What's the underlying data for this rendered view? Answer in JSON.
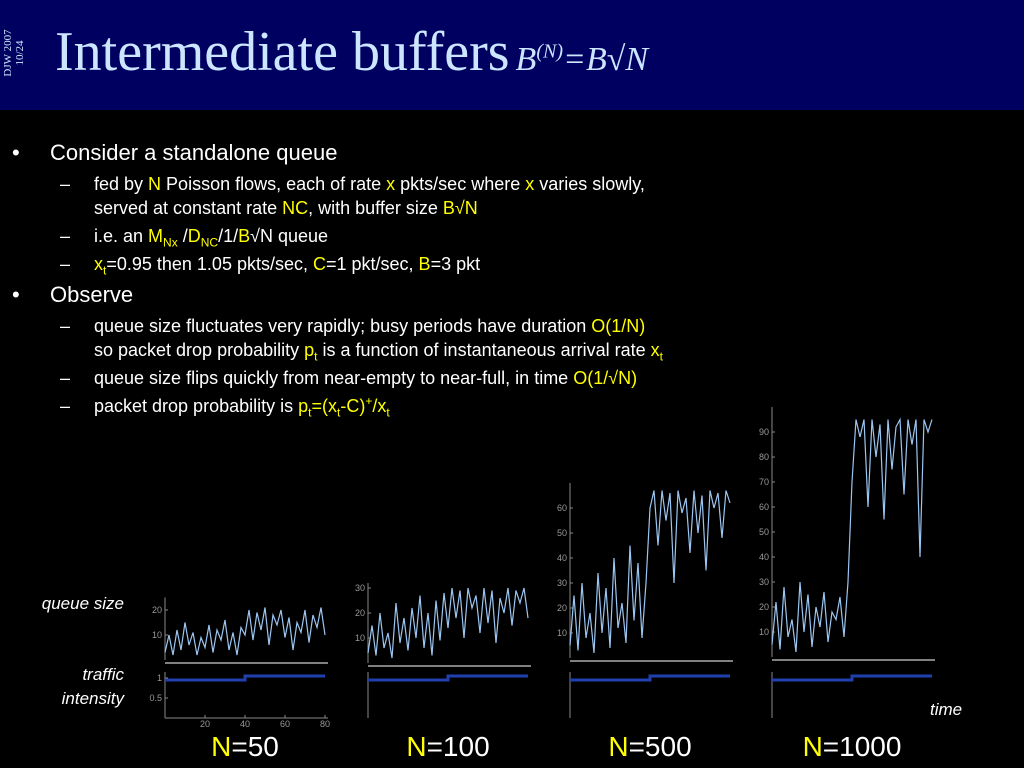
{
  "header": {
    "side": [
      "DJW 2007",
      "10/24"
    ],
    "title": "Intermediate buffers",
    "formula": [
      {
        "text": "B"
      },
      {
        "text": "(N)",
        "pos": "sup"
      },
      {
        "text": "=B√N"
      }
    ]
  },
  "bullets": [
    {
      "text": "Consider a standalone queue",
      "items": [
        {
          "lines": [
            [
              {
                "text": "fed by "
              },
              {
                "text": "N",
                "color": "#ffff00"
              },
              {
                "text": " Poisson flows, each of rate "
              },
              {
                "text": "x",
                "color": "#ffff00"
              },
              {
                "text": " pkts/sec where "
              },
              {
                "text": "x",
                "color": "#ffff00"
              },
              {
                "text": " varies slowly,"
              }
            ],
            [
              {
                "text": "served at constant rate "
              },
              {
                "text": "NC",
                "color": "#ffff00"
              },
              {
                "text": ", with buffer size "
              },
              {
                "text": "B√N",
                "color": "#ffff00"
              }
            ]
          ]
        },
        {
          "lines": [
            [
              {
                "text": "i.e. an "
              },
              {
                "text": "M",
                "color": "#ffff00"
              },
              {
                "text": "Nx",
                "color": "#ffff00",
                "pos": "sub"
              },
              {
                "text": " /"
              },
              {
                "text": "D",
                "color": "#ffff00"
              },
              {
                "text": "NC",
                "color": "#ffff00",
                "pos": "sub"
              },
              {
                "text": "/1/"
              },
              {
                "text": "B",
                "color": "#ffff00"
              },
              {
                "text": "√N queue"
              }
            ]
          ]
        },
        {
          "lines": [
            [
              {
                "text": "x",
                "color": "#ffff00"
              },
              {
                "text": "t",
                "color": "#ffff00",
                "pos": "sub"
              },
              {
                "text": "=0.95 then 1.05 pkts/sec, "
              },
              {
                "text": "C",
                "color": "#ffff00"
              },
              {
                "text": "=1 pkt/sec, "
              },
              {
                "text": "B",
                "color": "#ffff00"
              },
              {
                "text": "=3 pkt"
              }
            ]
          ]
        }
      ]
    },
    {
      "text": "Observe",
      "items": [
        {
          "lines": [
            [
              {
                "text": "queue size fluctuates very rapidly; busy periods have duration "
              },
              {
                "text": "O(1/N)",
                "color": "#ffff00"
              }
            ],
            [
              {
                "text": "so packet drop probability "
              },
              {
                "text": "p",
                "color": "#ffff00"
              },
              {
                "text": "t",
                "color": "#ffff00",
                "pos": "sub"
              },
              {
                "text": " is a function of instantaneous arrival rate "
              },
              {
                "text": "x",
                "color": "#ffff00"
              },
              {
                "text": "t",
                "color": "#ffff00",
                "pos": "sub"
              }
            ]
          ]
        },
        {
          "lines": [
            [
              {
                "text": "queue size flips quickly from near-empty to near-full, in time "
              },
              {
                "text": "O(1/√N)",
                "color": "#ffff00"
              }
            ]
          ]
        },
        {
          "lines": [
            [
              {
                "text": "packet drop probability is "
              },
              {
                "text": "p",
                "color": "#ffff00"
              },
              {
                "text": "t",
                "color": "#ffff00",
                "pos": "sub"
              },
              {
                "text": "=(x",
                "color": "#ffff00"
              },
              {
                "text": "t",
                "color": "#ffff00",
                "pos": "sub"
              },
              {
                "text": "-C)",
                "color": "#ffff00"
              },
              {
                "text": "+",
                "color": "#ffff00",
                "pos": "sup"
              },
              {
                "text": "/x",
                "color": "#ffff00"
              },
              {
                "text": "t",
                "color": "#ffff00",
                "pos": "sub"
              }
            ]
          ]
        }
      ]
    }
  ],
  "axis_labels": {
    "queue": "queue size",
    "intensity": "traffic intensity",
    "time": "time"
  },
  "chart_data": [
    {
      "type": "line",
      "label": [
        {
          "text": "N",
          "color": "#ffff00"
        },
        {
          "text": "=50"
        }
      ],
      "xlim": [
        0,
        80
      ],
      "xticks": [
        20,
        40,
        60,
        80
      ],
      "ylim": [
        0,
        25
      ],
      "yticks": [
        10,
        20
      ],
      "y2lim": [
        0,
        1.15
      ],
      "y2ticks": [
        0.5,
        1
      ],
      "queue": {
        "color": "#9cc6f2",
        "x": [
          0,
          2,
          4,
          6,
          8,
          10,
          12,
          14,
          16,
          18,
          20,
          22,
          24,
          26,
          28,
          30,
          32,
          34,
          36,
          38,
          40,
          42,
          44,
          46,
          48,
          50,
          52,
          54,
          56,
          58,
          60,
          62,
          64,
          66,
          68,
          70,
          72,
          74,
          76,
          78,
          80
        ],
        "values": [
          3,
          10,
          2,
          12,
          4,
          15,
          6,
          11,
          2,
          9,
          5,
          14,
          3,
          12,
          8,
          16,
          4,
          11,
          2,
          13,
          10,
          20,
          8,
          19,
          12,
          21,
          6,
          18,
          14,
          20,
          9,
          17,
          4,
          15,
          11,
          20,
          7,
          18,
          13,
          21,
          10
        ]
      },
      "intensity": {
        "color": "#2040b0",
        "axis": "y2",
        "x": [
          0,
          40,
          40,
          80
        ],
        "values": [
          0.95,
          0.95,
          1.05,
          1.05
        ]
      }
    },
    {
      "type": "line",
      "label": [
        {
          "text": "N",
          "color": "#ffff00"
        },
        {
          "text": "=100"
        }
      ],
      "xlim": [
        0,
        80
      ],
      "ylim": [
        0,
        32
      ],
      "yticks": [
        10,
        20,
        30
      ],
      "y2lim": [
        0,
        1.15
      ],
      "queue": {
        "color": "#9cc6f2",
        "x": [
          0,
          2,
          4,
          6,
          8,
          10,
          12,
          14,
          16,
          18,
          20,
          22,
          24,
          26,
          28,
          30,
          32,
          34,
          36,
          38,
          40,
          42,
          44,
          46,
          48,
          50,
          52,
          54,
          56,
          58,
          60,
          62,
          64,
          66,
          68,
          70,
          72,
          74,
          76,
          78,
          80
        ],
        "values": [
          4,
          15,
          3,
          20,
          6,
          12,
          2,
          24,
          8,
          18,
          5,
          22,
          10,
          27,
          6,
          20,
          3,
          25,
          9,
          28,
          14,
          30,
          18,
          29,
          10,
          30,
          22,
          27,
          12,
          30,
          16,
          29,
          8,
          26,
          20,
          30,
          15,
          29,
          24,
          30,
          18
        ]
      },
      "intensity": {
        "color": "#2040b0",
        "axis": "y2",
        "x": [
          0,
          40,
          40,
          80
        ],
        "values": [
          0.95,
          0.95,
          1.05,
          1.05
        ]
      }
    },
    {
      "type": "line",
      "label": [
        {
          "text": "N",
          "color": "#ffff00"
        },
        {
          "text": "=500"
        }
      ],
      "xlim": [
        0,
        80
      ],
      "ylim": [
        0,
        70
      ],
      "yticks": [
        10,
        20,
        30,
        40,
        50,
        60
      ],
      "y2lim": [
        0,
        1.15
      ],
      "queue": {
        "color": "#9cc6f2",
        "x": [
          0,
          2,
          4,
          6,
          8,
          10,
          12,
          14,
          16,
          18,
          20,
          22,
          24,
          26,
          28,
          30,
          32,
          34,
          36,
          38,
          40,
          42,
          44,
          46,
          48,
          50,
          52,
          54,
          56,
          58,
          60,
          62,
          64,
          66,
          68,
          70,
          72,
          74,
          76,
          78,
          80
        ],
        "values": [
          5,
          25,
          3,
          30,
          8,
          18,
          2,
          34,
          10,
          28,
          4,
          40,
          12,
          22,
          6,
          45,
          15,
          38,
          8,
          30,
          60,
          67,
          45,
          67,
          55,
          66,
          30,
          67,
          58,
          64,
          42,
          67,
          50,
          65,
          35,
          67,
          60,
          66,
          48,
          67,
          62
        ]
      },
      "intensity": {
        "color": "#2040b0",
        "axis": "y2",
        "x": [
          0,
          40,
          40,
          80
        ],
        "values": [
          0.95,
          0.95,
          1.05,
          1.05
        ]
      }
    },
    {
      "type": "line",
      "label": [
        {
          "text": "N",
          "color": "#ffff00"
        },
        {
          "text": "=1000"
        }
      ],
      "xlim": [
        0,
        80
      ],
      "ylim": [
        0,
        100
      ],
      "yticks": [
        10,
        20,
        30,
        40,
        50,
        60,
        70,
        80,
        90
      ],
      "y2lim": [
        0,
        1.15
      ],
      "queue": {
        "color": "#9cc6f2",
        "x": [
          0,
          2,
          4,
          6,
          8,
          10,
          12,
          14,
          16,
          18,
          20,
          22,
          24,
          26,
          28,
          30,
          32,
          34,
          36,
          38,
          40,
          42,
          44,
          46,
          48,
          50,
          52,
          54,
          56,
          58,
          60,
          62,
          64,
          66,
          68,
          70,
          72,
          74,
          76,
          78,
          80
        ],
        "values": [
          5,
          22,
          3,
          28,
          8,
          15,
          2,
          30,
          10,
          25,
          4,
          20,
          12,
          26,
          6,
          18,
          15,
          24,
          8,
          30,
          70,
          95,
          88,
          95,
          60,
          95,
          80,
          93,
          55,
          95,
          75,
          92,
          95,
          65,
          95,
          85,
          95,
          40,
          95,
          90,
          95
        ]
      },
      "intensity": {
        "color": "#2040b0",
        "axis": "y2",
        "x": [
          0,
          40,
          40,
          80
        ],
        "values": [
          0.95,
          0.95,
          1.05,
          1.05
        ]
      }
    }
  ]
}
